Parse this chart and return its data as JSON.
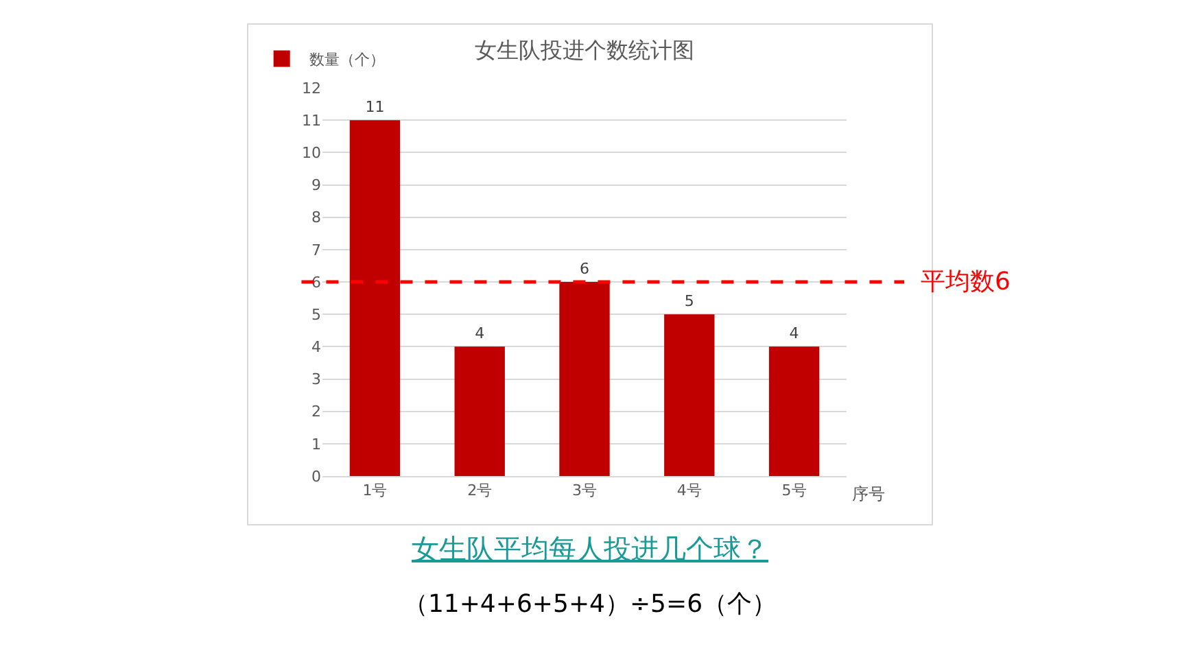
{
  "chart_data": {
    "type": "bar",
    "title": "女生队投进个数统计图",
    "xlabel": "序号",
    "categories": [
      "1号",
      "2号",
      "3号",
      "4号",
      "5号"
    ],
    "series": [
      {
        "name": "数量（个）",
        "color": "#c00000",
        "values": [
          11,
          4,
          6,
          5,
          4
        ]
      }
    ],
    "ylim": [
      0,
      12
    ],
    "yticks": [
      0,
      1,
      2,
      3,
      4,
      5,
      6,
      7,
      8,
      9,
      10,
      11,
      12
    ],
    "grid": "y",
    "legend": "top left",
    "data_labels": true,
    "ref_lines": [
      {
        "axis": "y",
        "value": 6,
        "label": "平均数6",
        "color": "#ff0000",
        "line_style": "dashed"
      }
    ],
    "annotations": [
      "女生队平均每人投进几个球？",
      "（11+4+6+5+4）÷5=6（个）"
    ]
  }
}
